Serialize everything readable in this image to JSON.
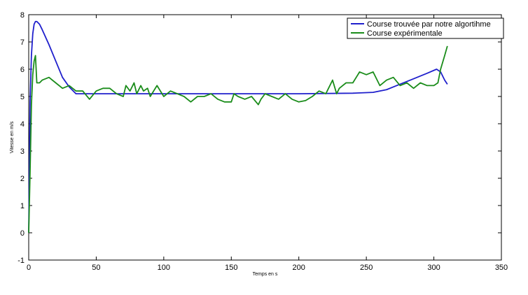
{
  "chart_data": {
    "type": "line",
    "title": "",
    "xlabel": "Temps en s",
    "ylabel": "Vitesse en m/s",
    "xlim": [
      0,
      350
    ],
    "ylim": [
      -1,
      8
    ],
    "xticks": [
      0,
      50,
      100,
      150,
      200,
      250,
      300,
      350
    ],
    "yticks": [
      -1,
      0,
      1,
      2,
      3,
      4,
      5,
      6,
      7,
      8
    ],
    "grid": false,
    "legend_position": "top-right",
    "series": [
      {
        "name": "Course trouvée par notre algortihme",
        "color": "#1f1fcc",
        "x": [
          0,
          1,
          2,
          3,
          4,
          5,
          6,
          8,
          10,
          15,
          20,
          25,
          30,
          35,
          40,
          50,
          100,
          150,
          200,
          240,
          255,
          265,
          275,
          285,
          295,
          302,
          305,
          308,
          310
        ],
        "y": [
          0,
          4.8,
          6.5,
          7.3,
          7.65,
          7.75,
          7.75,
          7.65,
          7.45,
          6.9,
          6.3,
          5.7,
          5.35,
          5.1,
          5.1,
          5.1,
          5.1,
          5.1,
          5.1,
          5.12,
          5.15,
          5.25,
          5.45,
          5.65,
          5.85,
          6.0,
          5.9,
          5.6,
          5.45
        ]
      },
      {
        "name": "Course expérimentale",
        "color": "#1a8c1a",
        "x": [
          0,
          1,
          2,
          3,
          4,
          5,
          6,
          8,
          10,
          15,
          20,
          25,
          30,
          35,
          40,
          45,
          50,
          55,
          60,
          65,
          70,
          72,
          75,
          78,
          80,
          83,
          85,
          88,
          90,
          95,
          100,
          105,
          110,
          115,
          120,
          125,
          130,
          135,
          140,
          145,
          150,
          152,
          155,
          160,
          165,
          170,
          172,
          175,
          180,
          185,
          190,
          195,
          200,
          205,
          210,
          215,
          220,
          222,
          225,
          228,
          230,
          235,
          240,
          245,
          250,
          255,
          260,
          265,
          270,
          275,
          280,
          285,
          290,
          295,
          300,
          303,
          305,
          308,
          310
        ],
        "y": [
          0,
          2.2,
          4.7,
          5.8,
          6.3,
          6.5,
          5.5,
          5.5,
          5.6,
          5.7,
          5.5,
          5.3,
          5.4,
          5.2,
          5.2,
          4.9,
          5.2,
          5.3,
          5.3,
          5.1,
          5.0,
          5.4,
          5.2,
          5.5,
          5.1,
          5.4,
          5.2,
          5.3,
          5.0,
          5.4,
          5.0,
          5.2,
          5.1,
          5.0,
          4.8,
          5.0,
          5.0,
          5.1,
          4.9,
          4.8,
          4.8,
          5.1,
          5.0,
          4.9,
          5.0,
          4.7,
          4.9,
          5.1,
          5.0,
          4.9,
          5.1,
          4.9,
          4.8,
          4.85,
          5.0,
          5.2,
          5.1,
          5.3,
          5.6,
          5.1,
          5.3,
          5.5,
          5.5,
          5.9,
          5.8,
          5.9,
          5.4,
          5.6,
          5.7,
          5.4,
          5.5,
          5.3,
          5.5,
          5.4,
          5.4,
          5.5,
          6.0,
          6.5,
          6.85
        ]
      }
    ]
  }
}
